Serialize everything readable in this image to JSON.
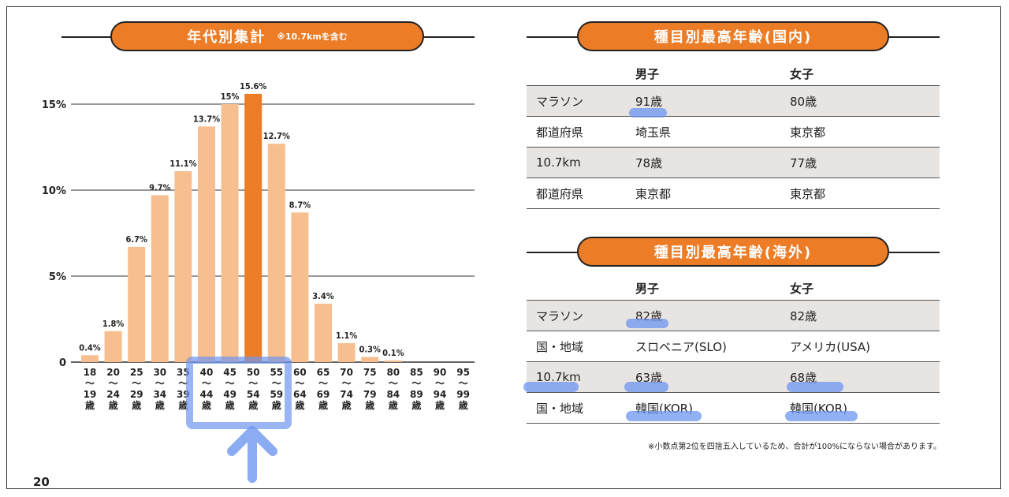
{
  "left_banner": {
    "title": "年代別集計",
    "note": "※10.7kmを含む"
  },
  "right_banner_domestic": {
    "title": "種目別最高年齢(国内)"
  },
  "right_banner_overseas": {
    "title": "種目別最高年齢(海外)"
  },
  "domestic_table": {
    "headers": [
      "",
      "男子",
      "女子"
    ],
    "rows": [
      [
        "マラソン",
        "91歳",
        "80歳"
      ],
      [
        "都道府県",
        "埼玉県",
        "東京都"
      ],
      [
        "10.7km",
        "78歳",
        "77歳"
      ],
      [
        "都道府県",
        "東京都",
        "東京都"
      ]
    ]
  },
  "overseas_table": {
    "headers": [
      "",
      "男子",
      "女子"
    ],
    "rows": [
      [
        "マラソン",
        "82歳",
        "82歳"
      ],
      [
        "国・地域",
        "スロベニア(SLO)",
        "アメリカ(USA)"
      ],
      [
        "10.7km",
        "63歳",
        "68歳"
      ],
      [
        "国・地域",
        "韓国(KOR)",
        "韓国(KOR)"
      ]
    ]
  },
  "footnote": "※小数点第2位を四捨五入しているため、合計が100%にならない場合があります。",
  "page_number": "20",
  "colors": {
    "bar": "#f7bf8f",
    "bar_highlight": "#ec7c26",
    "banner": "#ec7c26",
    "annotation": "#6e96f0"
  },
  "chart_data": {
    "type": "bar",
    "categories": [
      "18〜19歳",
      "20〜24歳",
      "25〜29歳",
      "30〜34歳",
      "35〜39歳",
      "40〜44歳",
      "45〜49歳",
      "50〜54歳",
      "55〜59歳",
      "60〜64歳",
      "65〜69歳",
      "70〜74歳",
      "75〜79歳",
      "80〜84歳",
      "85〜89歳",
      "90〜94歳",
      "95〜99歳"
    ],
    "category_parts": [
      [
        "18",
        "19"
      ],
      [
        "20",
        "24"
      ],
      [
        "25",
        "29"
      ],
      [
        "30",
        "34"
      ],
      [
        "35",
        "39"
      ],
      [
        "40",
        "44"
      ],
      [
        "45",
        "49"
      ],
      [
        "50",
        "54"
      ],
      [
        "55",
        "59"
      ],
      [
        "60",
        "64"
      ],
      [
        "65",
        "69"
      ],
      [
        "70",
        "74"
      ],
      [
        "75",
        "79"
      ],
      [
        "80",
        "84"
      ],
      [
        "85",
        "89"
      ],
      [
        "90",
        "94"
      ],
      [
        "95",
        "99"
      ]
    ],
    "range_mark": "〜",
    "unit_label": "歳",
    "values": [
      0.4,
      1.8,
      6.7,
      9.7,
      11.1,
      13.7,
      15.0,
      15.6,
      12.7,
      8.7,
      3.4,
      1.1,
      0.3,
      0.1,
      null,
      null,
      null
    ],
    "value_labels": [
      "0.4%",
      "1.8%",
      "6.7%",
      "9.7%",
      "11.1%",
      "13.7%",
      "15%",
      "15.6%",
      "12.7%",
      "8.7%",
      "3.4%",
      "1.1%",
      "0.3%",
      "0.1%",
      "",
      "",
      ""
    ],
    "highlight_index": 7,
    "yticks": [
      0,
      5,
      10,
      15
    ],
    "ytick_labels": [
      "0",
      "5%",
      "10%",
      "15%"
    ],
    "ylim": [
      0,
      17
    ],
    "grid": true
  }
}
